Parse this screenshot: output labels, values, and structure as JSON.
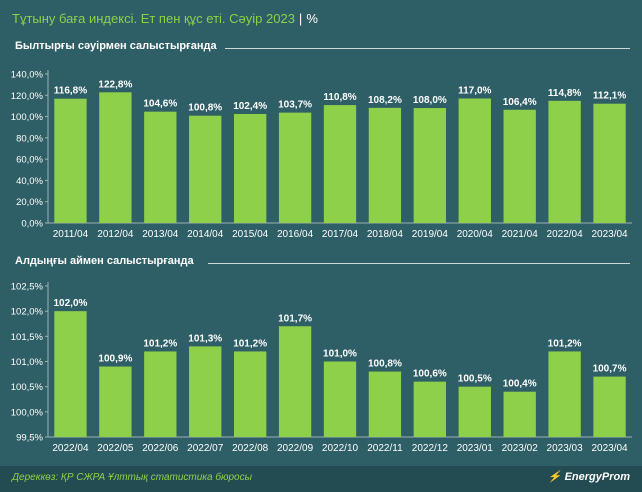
{
  "header": {
    "title": "Тұтыну баға индексі. Ет пен құс еті. Сәуір 2023",
    "separator": "|",
    "unit": "%"
  },
  "footer": {
    "source": "Дереккөз: ҚР СЖРА Ұлттық статистика бюросы",
    "logo_text": "EnergyProm"
  },
  "colors": {
    "background": "#2e5e66",
    "bar": "#8fd04a",
    "text": "#ffffff"
  },
  "chart_data": [
    {
      "type": "bar",
      "title": "Былтырғы сәуірмен салыстырғанда",
      "categories": [
        "2011/04",
        "2012/04",
        "2013/04",
        "2014/04",
        "2015/04",
        "2016/04",
        "2017/04",
        "2018/04",
        "2019/04",
        "2020/04",
        "2021/04",
        "2022/04",
        "2023/04"
      ],
      "values": [
        116.8,
        122.8,
        104.6,
        100.8,
        102.4,
        103.7,
        110.8,
        108.2,
        108.0,
        117.0,
        106.4,
        114.8,
        112.1
      ],
      "value_labels": [
        "116,8%",
        "122,8%",
        "104,6%",
        "100,8%",
        "102,4%",
        "103,7%",
        "110,8%",
        "108,2%",
        "108,0%",
        "117,0%",
        "106,4%",
        "114,8%",
        "112,1%"
      ],
      "yticks": [
        0,
        20,
        40,
        60,
        80,
        100,
        120,
        140
      ],
      "ytick_labels": [
        "0,0%",
        "20,0%",
        "40,0%",
        "60,0%",
        "80,0%",
        "100,0%",
        "120,0%",
        "140,0%"
      ],
      "ylim": [
        0,
        140
      ],
      "grid": false
    },
    {
      "type": "bar",
      "title": "Алдыңғы аймен салыстырғанда",
      "categories": [
        "2022/04",
        "2022/05",
        "2022/06",
        "2022/07",
        "2022/08",
        "2022/09",
        "2022/10",
        "2022/11",
        "2022/12",
        "2023/01",
        "2023/02",
        "2023/03",
        "2023/04"
      ],
      "values": [
        102.0,
        100.9,
        101.2,
        101.3,
        101.2,
        101.7,
        101.0,
        100.8,
        100.6,
        100.5,
        100.4,
        101.2,
        100.7
      ],
      "value_labels": [
        "102,0%",
        "100,9%",
        "101,2%",
        "101,3%",
        "101,2%",
        "101,7%",
        "101,0%",
        "100,8%",
        "100,6%",
        "100,5%",
        "100,4%",
        "101,2%",
        "100,7%"
      ],
      "yticks": [
        99.5,
        100,
        100.5,
        101,
        101.5,
        102,
        102.5
      ],
      "ytick_labels": [
        "99,5%",
        "100,0%",
        "100,5%",
        "101,0%",
        "101,5%",
        "102,0%",
        "102,5%"
      ],
      "ylim": [
        99.5,
        102.5
      ],
      "grid": false
    }
  ]
}
